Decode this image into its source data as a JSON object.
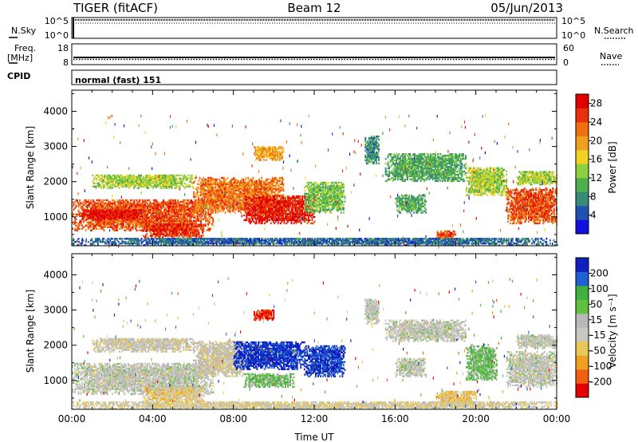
{
  "header": {
    "radar": "TIGER (fitACF)",
    "beam": "Beam 12",
    "date": "05/Jun/2013"
  },
  "strips": {
    "nsky": {
      "left_label": "N.Sky",
      "right_label": "N.Search",
      "left_ticks": [
        "10^5",
        "10^0"
      ],
      "right_ticks": [
        "10^5",
        "10^0"
      ]
    },
    "freq": {
      "left_label_1": "Freq.",
      "left_label_2": "[MHz]",
      "right_label": "Nave",
      "left_ticks": [
        "18",
        "8"
      ],
      "right_ticks": [
        "60",
        "0"
      ]
    },
    "cpid": {
      "label": "CPID",
      "text": "normal (fast) 151"
    }
  },
  "colors": {
    "power": [
      "#1010e0",
      "#2050b0",
      "#3a8a78",
      "#4fae4f",
      "#8ed040",
      "#f0d020",
      "#f0a020",
      "#f07010",
      "#e83010",
      "#e00000"
    ],
    "velocity": [
      "#e80000",
      "#f06010",
      "#f0a020",
      "#e8c858",
      "#c8c8c0",
      "#b8b8b8",
      "#60c040",
      "#40b040",
      "#2060d0",
      "#1020c0"
    ]
  },
  "chart_data": [
    {
      "type": "heatmap",
      "panel": "power",
      "ylabel": "Slant Range [km]",
      "xlabel": "",
      "xlim": [
        "00:00",
        "24:00"
      ],
      "ylim": [
        180,
        4600
      ],
      "x_ticks": [
        "00:00",
        "04:00",
        "08:00",
        "12:00",
        "16:00",
        "20:00",
        "00:00"
      ],
      "y_ticks": [
        "1000",
        "2000",
        "3000",
        "4000"
      ],
      "colorbar": {
        "label": "Power [dB]",
        "tick_labels": [
          "4",
          "8",
          "12",
          "16",
          "20",
          "24",
          "28"
        ],
        "range": [
          0,
          30
        ]
      },
      "echo_regions": [
        {
          "t_start": 0.0,
          "t_end": 7.0,
          "range_min": 600,
          "range_max": 1500,
          "level": 24
        },
        {
          "t_start": 0.5,
          "t_end": 3.5,
          "range_min": 900,
          "range_max": 1200,
          "level": 28
        },
        {
          "t_start": 1.0,
          "t_end": 6.0,
          "range_min": 1800,
          "range_max": 2200,
          "level": 14
        },
        {
          "t_start": 3.5,
          "t_end": 6.5,
          "range_min": 400,
          "range_max": 800,
          "level": 26
        },
        {
          "t_start": 6.0,
          "t_end": 10.5,
          "range_min": 1100,
          "range_max": 2100,
          "level": 22
        },
        {
          "t_start": 8.5,
          "t_end": 12.0,
          "range_min": 800,
          "range_max": 1600,
          "level": 27
        },
        {
          "t_start": 9.0,
          "t_end": 10.5,
          "range_min": 2600,
          "range_max": 3000,
          "level": 20
        },
        {
          "t_start": 11.5,
          "t_end": 13.5,
          "range_min": 1100,
          "range_max": 2000,
          "level": 12
        },
        {
          "t_start": 14.5,
          "t_end": 15.2,
          "range_min": 2500,
          "range_max": 3300,
          "level": 8
        },
        {
          "t_start": 15.5,
          "t_end": 19.5,
          "range_min": 2000,
          "range_max": 2800,
          "level": 10
        },
        {
          "t_start": 16.0,
          "t_end": 17.5,
          "range_min": 1100,
          "range_max": 1600,
          "level": 10
        },
        {
          "t_start": 18.0,
          "t_end": 19.0,
          "range_min": 300,
          "range_max": 600,
          "level": 24
        },
        {
          "t_start": 19.5,
          "t_end": 21.5,
          "range_min": 1600,
          "range_max": 2400,
          "level": 14
        },
        {
          "t_start": 21.5,
          "t_end": 24.0,
          "range_min": 800,
          "range_max": 1800,
          "level": 24
        },
        {
          "t_start": 22.0,
          "t_end": 24.0,
          "range_min": 1900,
          "range_max": 2300,
          "level": 14
        },
        {
          "t_start": 0.0,
          "t_end": 24.0,
          "range_min": 180,
          "range_max": 400,
          "level": 6
        }
      ]
    },
    {
      "type": "heatmap",
      "panel": "velocity",
      "ylabel": "Slant Range [km]",
      "xlabel": "Time UT",
      "xlim": [
        "00:00",
        "24:00"
      ],
      "ylim": [
        180,
        4600
      ],
      "x_ticks": [
        "00:00",
        "04:00",
        "08:00",
        "12:00",
        "16:00",
        "20:00",
        "00:00"
      ],
      "y_ticks": [
        "1000",
        "2000",
        "3000",
        "4000"
      ],
      "colorbar": {
        "label": "Velocity [m s⁻¹]",
        "tick_labels": [
          "200",
          "100",
          "50",
          "15",
          "-15",
          "-50",
          "-100",
          "-200"
        ],
        "range": [
          -250,
          250
        ]
      },
      "echo_regions": [
        {
          "t_start": 0.0,
          "t_end": 7.0,
          "range_min": 600,
          "range_max": 1500,
          "level": 0
        },
        {
          "t_start": 1.0,
          "t_end": 6.0,
          "range_min": 1800,
          "range_max": 2200,
          "level": -20
        },
        {
          "t_start": 3.5,
          "t_end": 6.5,
          "range_min": 350,
          "range_max": 800,
          "level": -60
        },
        {
          "t_start": 6.0,
          "t_end": 8.5,
          "range_min": 1100,
          "range_max": 2100,
          "level": -20
        },
        {
          "t_start": 8.0,
          "t_end": 11.5,
          "range_min": 1300,
          "range_max": 2100,
          "level": 220
        },
        {
          "t_start": 8.5,
          "t_end": 11.0,
          "range_min": 800,
          "range_max": 1200,
          "level": 70
        },
        {
          "t_start": 9.0,
          "t_end": 10.0,
          "range_min": 2700,
          "range_max": 3000,
          "level": -220
        },
        {
          "t_start": 11.5,
          "t_end": 13.5,
          "range_min": 1100,
          "range_max": 2000,
          "level": 210
        },
        {
          "t_start": 14.5,
          "t_end": 15.2,
          "range_min": 2600,
          "range_max": 3300,
          "level": 0
        },
        {
          "t_start": 15.5,
          "t_end": 19.5,
          "range_min": 2100,
          "range_max": 2700,
          "level": 0
        },
        {
          "t_start": 16.0,
          "t_end": 17.5,
          "range_min": 1100,
          "range_max": 1600,
          "level": 0
        },
        {
          "t_start": 18.0,
          "t_end": 20.0,
          "range_min": 300,
          "range_max": 700,
          "level": -70
        },
        {
          "t_start": 19.5,
          "t_end": 21.0,
          "range_min": 1000,
          "range_max": 2000,
          "level": 70
        },
        {
          "t_start": 21.5,
          "t_end": 24.0,
          "range_min": 800,
          "range_max": 1800,
          "level": 0
        },
        {
          "t_start": 22.0,
          "t_end": 24.0,
          "range_min": 1900,
          "range_max": 2300,
          "level": 0
        },
        {
          "t_start": 0.0,
          "t_end": 24.0,
          "range_min": 180,
          "range_max": 380,
          "level": -40
        }
      ]
    }
  ]
}
